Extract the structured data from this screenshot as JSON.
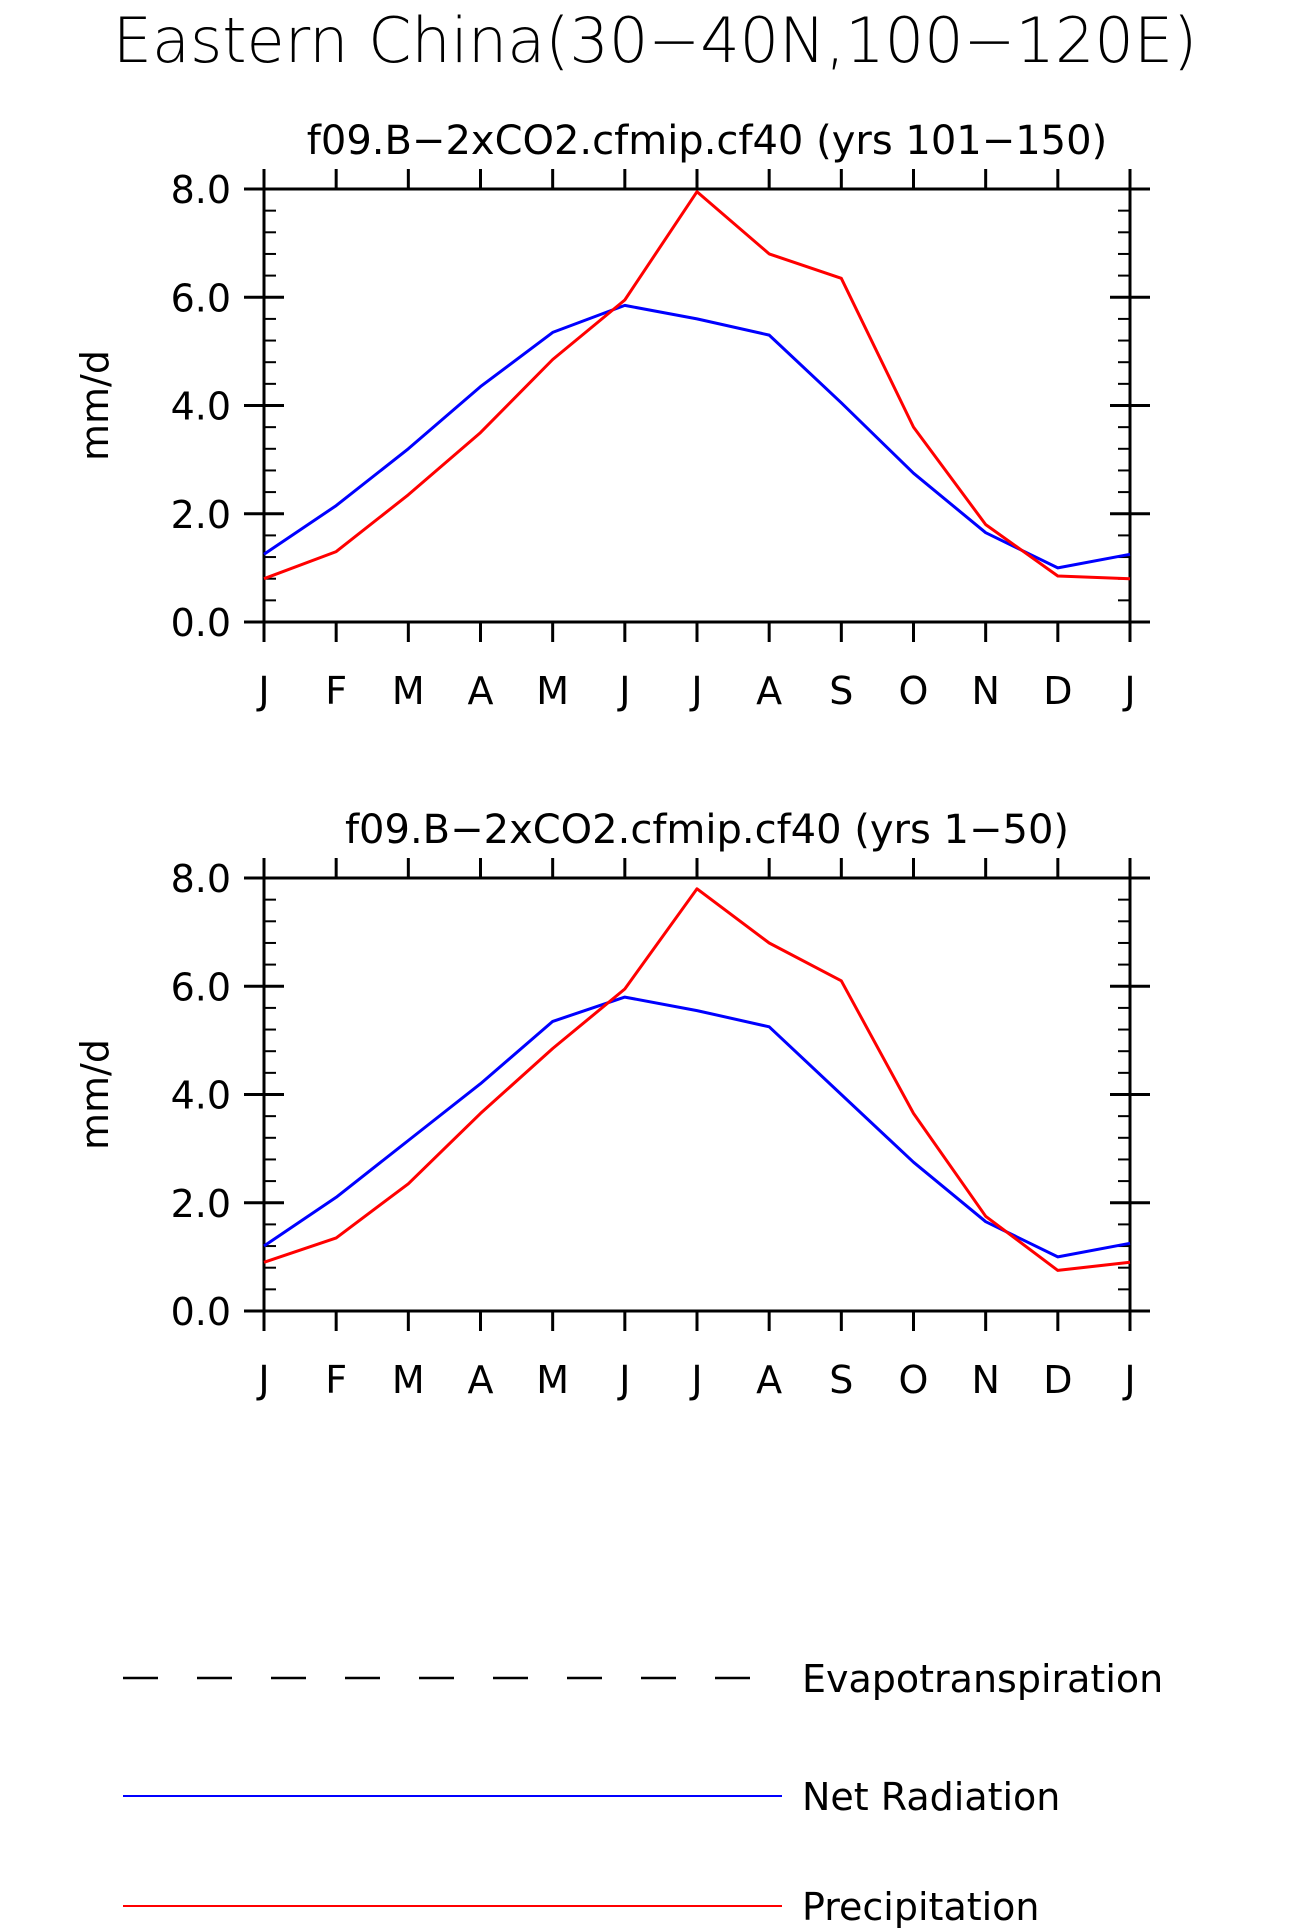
{
  "figure": {
    "title": "Eastern China(30−40N,100−120E)"
  },
  "chart_data": [
    {
      "type": "line",
      "title": "f09.B−2xCO2.cfmip.cf40 (yrs 101−150)",
      "xlabel": "",
      "ylabel": "mm/d",
      "categories": [
        "J",
        "F",
        "M",
        "A",
        "M",
        "J",
        "J",
        "A",
        "S",
        "O",
        "N",
        "D",
        "J"
      ],
      "ylim": [
        0,
        8
      ],
      "yticks": [
        "0.0",
        "2.0",
        "4.0",
        "6.0",
        "8.0"
      ],
      "grid": false,
      "series": [
        {
          "name": "Net Radiation",
          "color": "#0000ff",
          "values": [
            1.25,
            2.15,
            3.2,
            4.35,
            5.35,
            5.85,
            5.6,
            5.3,
            4.05,
            2.75,
            1.65,
            1.0,
            1.25
          ]
        },
        {
          "name": "Precipitation",
          "color": "#ff0000",
          "values": [
            0.8,
            1.3,
            2.35,
            3.5,
            4.85,
            5.95,
            7.95,
            6.8,
            6.35,
            3.6,
            1.8,
            0.85,
            0.8
          ]
        }
      ]
    },
    {
      "type": "line",
      "title": "f09.B−2xCO2.cfmip.cf40 (yrs 1−50)",
      "xlabel": "",
      "ylabel": "mm/d",
      "categories": [
        "J",
        "F",
        "M",
        "A",
        "M",
        "J",
        "J",
        "A",
        "S",
        "O",
        "N",
        "D",
        "J"
      ],
      "ylim": [
        0,
        8
      ],
      "yticks": [
        "0.0",
        "2.0",
        "4.0",
        "6.0",
        "8.0"
      ],
      "grid": false,
      "series": [
        {
          "name": "Net Radiation",
          "color": "#0000ff",
          "values": [
            1.2,
            2.1,
            3.15,
            4.2,
            5.35,
            5.8,
            5.55,
            5.25,
            4.0,
            2.75,
            1.65,
            1.0,
            1.25
          ]
        },
        {
          "name": "Precipitation",
          "color": "#ff0000",
          "values": [
            0.9,
            1.35,
            2.35,
            3.65,
            4.85,
            5.95,
            7.8,
            6.8,
            6.1,
            3.65,
            1.75,
            0.75,
            0.9
          ]
        }
      ]
    }
  ],
  "legend": {
    "placement": "bottom",
    "items": [
      {
        "label": "Evapotranspiration",
        "color": "#000000",
        "style": "dashed"
      },
      {
        "label": "Net Radiation",
        "color": "#0000ff",
        "style": "solid"
      },
      {
        "label": "Precipitation",
        "color": "#ff0000",
        "style": "solid"
      }
    ]
  }
}
